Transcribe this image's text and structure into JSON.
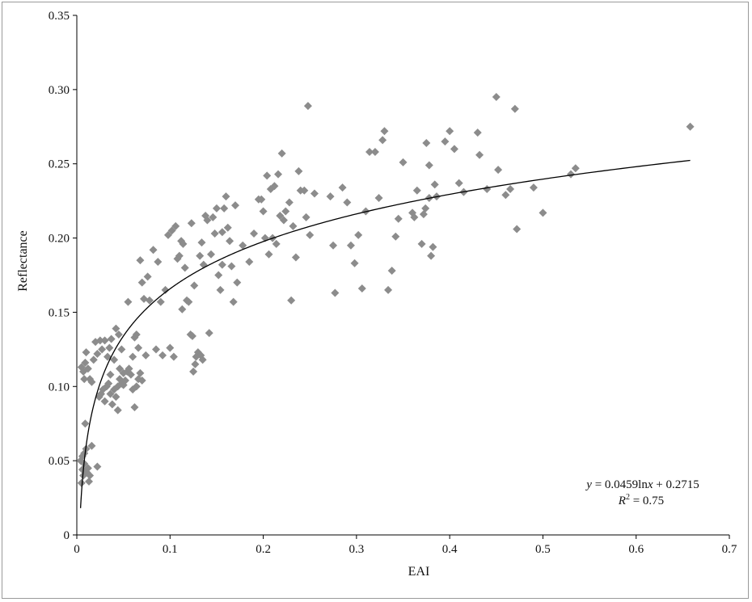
{
  "chart_data": {
    "type": "scatter",
    "xlabel": "EAI",
    "ylabel": "Reflectance",
    "xlim": [
      0,
      0.7
    ],
    "ylim": [
      0,
      0.35
    ],
    "x_ticks": [
      "0",
      "0.1",
      "0.2",
      "0.3",
      "0.4",
      "0.5",
      "0.6",
      "0.7"
    ],
    "y_ticks": [
      "0",
      "0.05",
      "0.10",
      "0.15",
      "0.20",
      "0.25",
      "0.30",
      "0.35"
    ],
    "marker_color": "#8c8c8c",
    "fit_color": "#000000",
    "fit": {
      "type": "log",
      "a": 0.0459,
      "b": 0.2715,
      "x_range": [
        0.004,
        0.658
      ]
    },
    "annotation": {
      "equation_prefix": "y",
      "equation_mid": " = 0.0459ln",
      "equation_var": "x",
      "equation_suffix": " + 0.2715",
      "r2_prefix": "R",
      "r2_sup": "2",
      "r2_suffix": " = 0.75"
    },
    "points": [
      [
        0.005,
        0.113
      ],
      [
        0.007,
        0.11
      ],
      [
        0.008,
        0.105
      ],
      [
        0.009,
        0.116
      ],
      [
        0.01,
        0.123
      ],
      [
        0.012,
        0.112
      ],
      [
        0.014,
        0.105
      ],
      [
        0.016,
        0.103
      ],
      [
        0.004,
        0.05
      ],
      [
        0.006,
        0.053
      ],
      [
        0.008,
        0.055
      ],
      [
        0.01,
        0.058
      ],
      [
        0.012,
        0.045
      ],
      [
        0.014,
        0.04
      ],
      [
        0.016,
        0.06
      ],
      [
        0.005,
        0.035
      ],
      [
        0.007,
        0.04
      ],
      [
        0.009,
        0.075
      ],
      [
        0.011,
        0.042
      ],
      [
        0.013,
        0.036
      ],
      [
        0.022,
        0.046
      ],
      [
        0.006,
        0.044
      ],
      [
        0.008,
        0.048
      ],
      [
        0.018,
        0.118
      ],
      [
        0.02,
        0.13
      ],
      [
        0.022,
        0.122
      ],
      [
        0.025,
        0.131
      ],
      [
        0.027,
        0.125
      ],
      [
        0.03,
        0.131
      ],
      [
        0.033,
        0.12
      ],
      [
        0.035,
        0.126
      ],
      [
        0.037,
        0.132
      ],
      [
        0.04,
        0.118
      ],
      [
        0.042,
        0.139
      ],
      [
        0.045,
        0.135
      ],
      [
        0.048,
        0.125
      ],
      [
        0.024,
        0.093
      ],
      [
        0.026,
        0.095
      ],
      [
        0.028,
        0.098
      ],
      [
        0.03,
        0.09
      ],
      [
        0.032,
        0.1
      ],
      [
        0.034,
        0.102
      ],
      [
        0.036,
        0.095
      ],
      [
        0.038,
        0.088
      ],
      [
        0.04,
        0.098
      ],
      [
        0.042,
        0.093
      ],
      [
        0.044,
        0.084
      ],
      [
        0.046,
        0.105
      ],
      [
        0.048,
        0.102
      ],
      [
        0.05,
        0.109
      ],
      [
        0.052,
        0.104
      ],
      [
        0.054,
        0.11
      ],
      [
        0.056,
        0.112
      ],
      [
        0.058,
        0.108
      ],
      [
        0.06,
        0.098
      ],
      [
        0.062,
        0.086
      ],
      [
        0.064,
        0.1
      ],
      [
        0.066,
        0.105
      ],
      [
        0.068,
        0.109
      ],
      [
        0.07,
        0.104
      ],
      [
        0.05,
        0.101
      ],
      [
        0.044,
        0.1
      ],
      [
        0.046,
        0.112
      ],
      [
        0.036,
        0.108
      ],
      [
        0.055,
        0.157
      ],
      [
        0.06,
        0.12
      ],
      [
        0.062,
        0.133
      ],
      [
        0.064,
        0.135
      ],
      [
        0.066,
        0.126
      ],
      [
        0.068,
        0.185
      ],
      [
        0.07,
        0.17
      ],
      [
        0.072,
        0.159
      ],
      [
        0.074,
        0.121
      ],
      [
        0.076,
        0.174
      ],
      [
        0.078,
        0.158
      ],
      [
        0.082,
        0.192
      ],
      [
        0.085,
        0.125
      ],
      [
        0.087,
        0.184
      ],
      [
        0.09,
        0.157
      ],
      [
        0.092,
        0.121
      ],
      [
        0.095,
        0.165
      ],
      [
        0.098,
        0.202
      ],
      [
        0.1,
        0.126
      ],
      [
        0.102,
        0.205
      ],
      [
        0.104,
        0.12
      ],
      [
        0.106,
        0.208
      ],
      [
        0.108,
        0.186
      ],
      [
        0.11,
        0.188
      ],
      [
        0.112,
        0.198
      ],
      [
        0.113,
        0.152
      ],
      [
        0.114,
        0.196
      ],
      [
        0.116,
        0.18
      ],
      [
        0.118,
        0.158
      ],
      [
        0.12,
        0.157
      ],
      [
        0.122,
        0.135
      ],
      [
        0.124,
        0.134
      ],
      [
        0.125,
        0.11
      ],
      [
        0.127,
        0.115
      ],
      [
        0.128,
        0.12
      ],
      [
        0.13,
        0.123
      ],
      [
        0.132,
        0.188
      ],
      [
        0.134,
        0.197
      ],
      [
        0.136,
        0.182
      ],
      [
        0.138,
        0.215
      ],
      [
        0.14,
        0.212
      ],
      [
        0.142,
        0.136
      ],
      [
        0.144,
        0.189
      ],
      [
        0.146,
        0.214
      ],
      [
        0.148,
        0.203
      ],
      [
        0.15,
        0.22
      ],
      [
        0.152,
        0.175
      ],
      [
        0.154,
        0.165
      ],
      [
        0.156,
        0.204
      ],
      [
        0.158,
        0.22
      ],
      [
        0.16,
        0.228
      ],
      [
        0.162,
        0.207
      ],
      [
        0.164,
        0.198
      ],
      [
        0.166,
        0.181
      ],
      [
        0.168,
        0.157
      ],
      [
        0.17,
        0.222
      ],
      [
        0.172,
        0.17
      ],
      [
        0.133,
        0.121
      ],
      [
        0.135,
        0.118
      ],
      [
        0.123,
        0.21
      ],
      [
        0.126,
        0.168
      ],
      [
        0.156,
        0.182
      ],
      [
        0.178,
        0.195
      ],
      [
        0.185,
        0.184
      ],
      [
        0.19,
        0.203
      ],
      [
        0.195,
        0.226
      ],
      [
        0.198,
        0.226
      ],
      [
        0.2,
        0.218
      ],
      [
        0.202,
        0.2
      ],
      [
        0.204,
        0.242
      ],
      [
        0.206,
        0.189
      ],
      [
        0.208,
        0.233
      ],
      [
        0.21,
        0.2
      ],
      [
        0.212,
        0.235
      ],
      [
        0.214,
        0.196
      ],
      [
        0.216,
        0.243
      ],
      [
        0.218,
        0.215
      ],
      [
        0.22,
        0.257
      ],
      [
        0.222,
        0.212
      ],
      [
        0.224,
        0.218
      ],
      [
        0.228,
        0.224
      ],
      [
        0.23,
        0.158
      ],
      [
        0.232,
        0.208
      ],
      [
        0.235,
        0.187
      ],
      [
        0.238,
        0.245
      ],
      [
        0.24,
        0.232
      ],
      [
        0.244,
        0.232
      ],
      [
        0.246,
        0.214
      ],
      [
        0.248,
        0.289
      ],
      [
        0.25,
        0.202
      ],
      [
        0.255,
        0.23
      ],
      [
        0.272,
        0.228
      ],
      [
        0.275,
        0.195
      ],
      [
        0.277,
        0.163
      ],
      [
        0.285,
        0.234
      ],
      [
        0.29,
        0.224
      ],
      [
        0.294,
        0.195
      ],
      [
        0.298,
        0.183
      ],
      [
        0.302,
        0.202
      ],
      [
        0.306,
        0.166
      ],
      [
        0.31,
        0.218
      ],
      [
        0.314,
        0.258
      ],
      [
        0.32,
        0.258
      ],
      [
        0.324,
        0.227
      ],
      [
        0.328,
        0.266
      ],
      [
        0.33,
        0.272
      ],
      [
        0.334,
        0.165
      ],
      [
        0.338,
        0.178
      ],
      [
        0.342,
        0.201
      ],
      [
        0.345,
        0.213
      ],
      [
        0.35,
        0.251
      ],
      [
        0.36,
        0.217
      ],
      [
        0.362,
        0.214
      ],
      [
        0.365,
        0.232
      ],
      [
        0.37,
        0.196
      ],
      [
        0.372,
        0.216
      ],
      [
        0.375,
        0.264
      ],
      [
        0.378,
        0.249
      ],
      [
        0.38,
        0.188
      ],
      [
        0.382,
        0.194
      ],
      [
        0.384,
        0.236
      ],
      [
        0.386,
        0.228
      ],
      [
        0.374,
        0.22
      ],
      [
        0.378,
        0.227
      ],
      [
        0.395,
        0.265
      ],
      [
        0.4,
        0.272
      ],
      [
        0.405,
        0.26
      ],
      [
        0.41,
        0.237
      ],
      [
        0.415,
        0.231
      ],
      [
        0.43,
        0.271
      ],
      [
        0.432,
        0.256
      ],
      [
        0.44,
        0.233
      ],
      [
        0.45,
        0.295
      ],
      [
        0.452,
        0.246
      ],
      [
        0.46,
        0.229
      ],
      [
        0.465,
        0.233
      ],
      [
        0.47,
        0.287
      ],
      [
        0.472,
        0.206
      ],
      [
        0.49,
        0.234
      ],
      [
        0.5,
        0.217
      ],
      [
        0.53,
        0.243
      ],
      [
        0.535,
        0.247
      ],
      [
        0.658,
        0.275
      ]
    ]
  }
}
